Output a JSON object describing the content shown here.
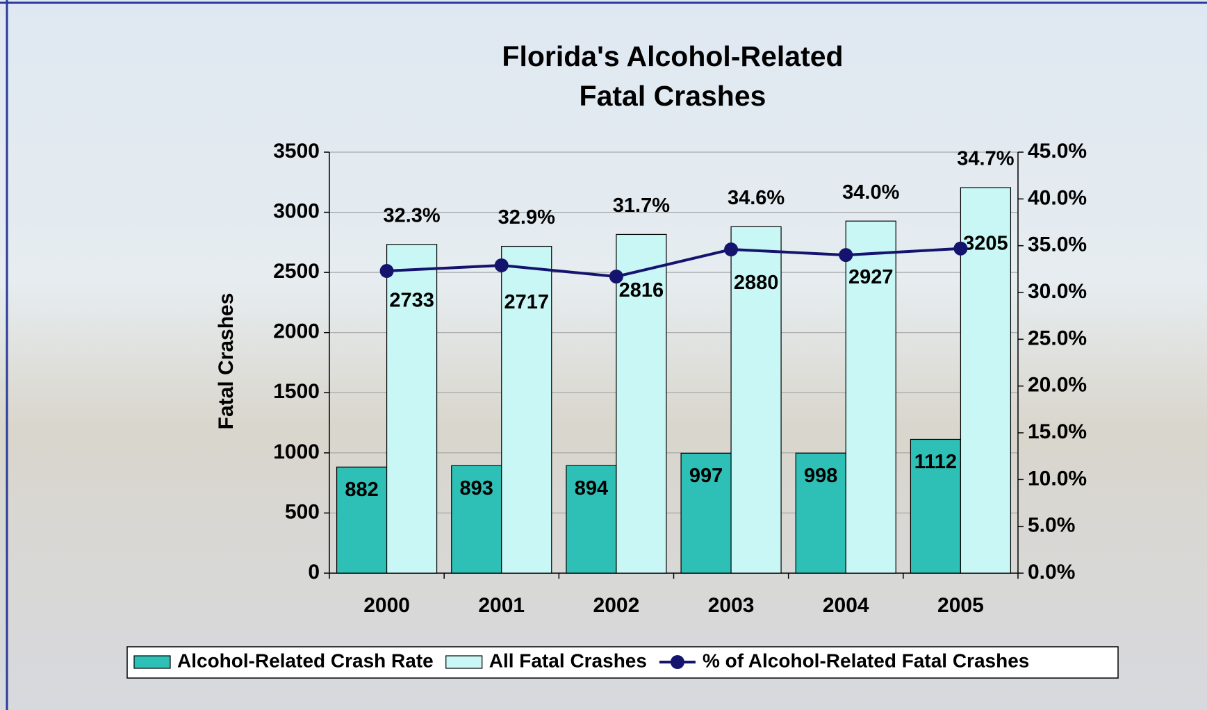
{
  "chart_data": {
    "type": "bar-line",
    "title": [
      "Florida's Alcohol-Related",
      "Fatal Crashes"
    ],
    "y_label": "Fatal Crashes",
    "categories": [
      "2000",
      "2001",
      "2002",
      "2003",
      "2004",
      "2005"
    ],
    "series": [
      {
        "name": "Alcohol-Related Crash Rate",
        "type": "bar",
        "color": "#2ebfb6",
        "values": [
          882,
          893,
          894,
          997,
          998,
          1112
        ]
      },
      {
        "name": "All Fatal Crashes",
        "type": "bar",
        "color": "#c8f7f5",
        "values": [
          2733,
          2717,
          2816,
          2880,
          2927,
          3205
        ]
      },
      {
        "name": "% of Alcohol-Related Fatal Crashes",
        "type": "line",
        "axis": "y2",
        "color": "#14146e",
        "values": [
          32.3,
          32.9,
          31.7,
          34.6,
          34.0,
          34.7
        ],
        "value_labels": [
          "32.3%",
          "32.9%",
          "31.7%",
          "34.6%",
          "34.0%",
          "34.7%"
        ]
      }
    ],
    "ylim": [
      0,
      3500
    ],
    "yticks": [
      0,
      500,
      1000,
      1500,
      2000,
      2500,
      3000,
      3500
    ],
    "y2lim": [
      0,
      45
    ],
    "y2ticks": [
      {
        "value": 0,
        "label": "0.0%"
      },
      {
        "value": 5,
        "label": "5.0%"
      },
      {
        "value": 10,
        "label": "10.0%"
      },
      {
        "value": 15,
        "label": "15.0%"
      },
      {
        "value": 20,
        "label": "20.0%"
      },
      {
        "value": 25,
        "label": "25.0%"
      },
      {
        "value": 30,
        "label": "30.0%"
      },
      {
        "value": 35,
        "label": "35.0%"
      },
      {
        "value": 40,
        "label": "40.0%"
      },
      {
        "value": 45,
        "label": "45.0%"
      }
    ],
    "grid": true,
    "legend": "bottom"
  }
}
